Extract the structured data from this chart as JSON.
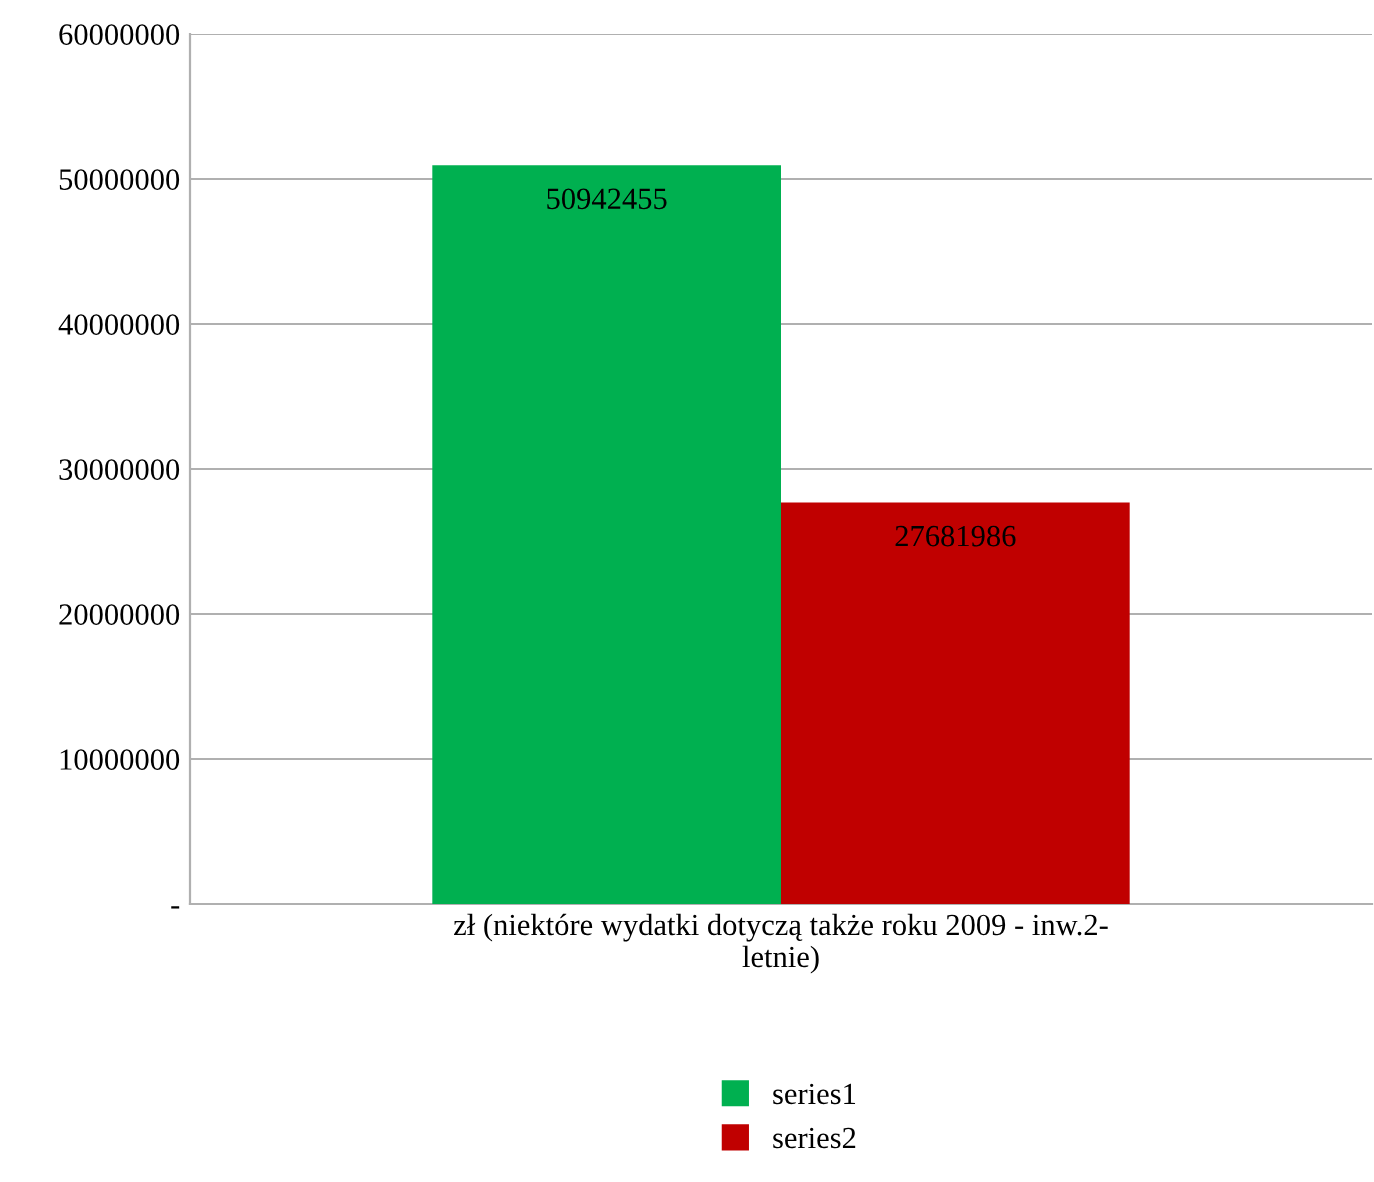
{
  "chart_data": {
    "type": "bar",
    "categories": [
      "zł (niektóre wydatki dotyczą także roku 2009 - inw.2-\nletnie)"
    ],
    "series": [
      {
        "name": "series1",
        "color": "#00b050",
        "values": [
          50942455
        ]
      },
      {
        "name": "series2",
        "color": "#c00000",
        "values": [
          27681986
        ]
      }
    ],
    "ylim": [
      0,
      60000000
    ],
    "yticks": [
      {
        "value": 0,
        "label": "-"
      },
      10000000,
      20000000,
      30000000,
      40000000,
      50000000,
      60000000
    ],
    "grid": "y",
    "legend": "bottom",
    "data_labels": true
  }
}
